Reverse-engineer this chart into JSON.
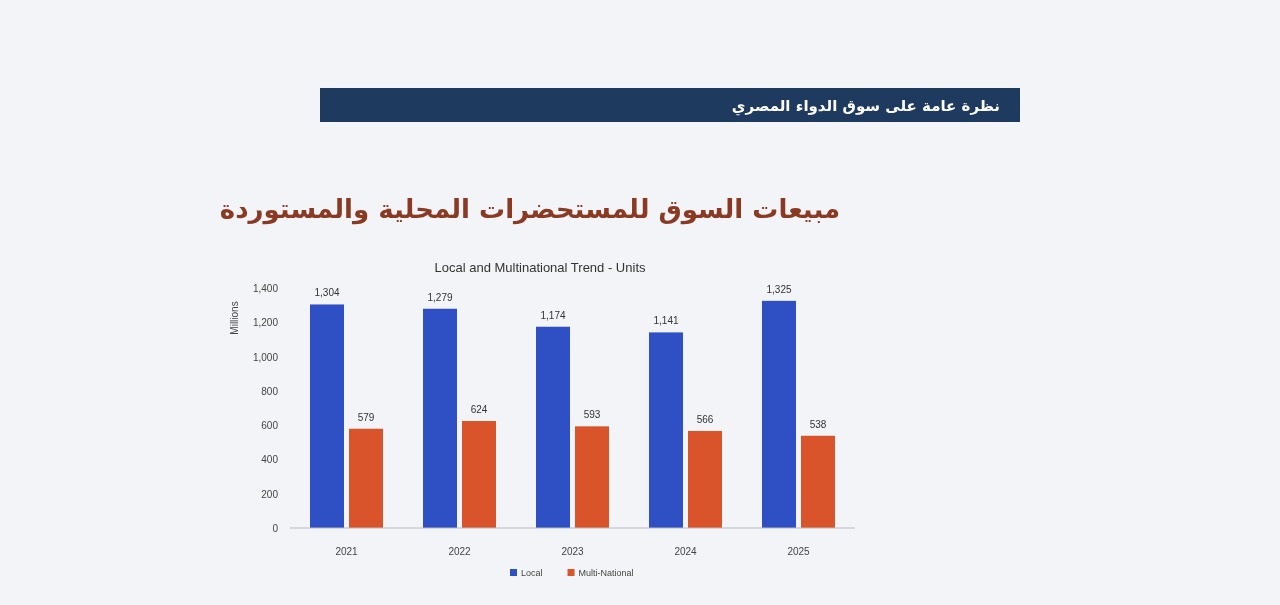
{
  "chart_data": {
    "type": "bar",
    "title": "مبيعات السوق للمستحضرات المحلية والمستوردة",
    "subtitle": "Local and Multinational Trend - Units",
    "annotations": [
      "نظرة عامة على سوق الدواء المصري"
    ],
    "ylabel": "Millions",
    "categories": [
      "2021",
      "2022",
      "2023",
      "2024",
      "2025"
    ],
    "series": [
      {
        "name": "Local",
        "color": "#2f4fc4",
        "values": [
          1304,
          1279,
          1174,
          1141,
          1325
        ],
        "value_labels": [
          "1,304",
          "1,279",
          "1,174",
          "1,141",
          "1,325"
        ]
      },
      {
        "name": "Multi-National",
        "color": "#d9542b",
        "values": [
          579,
          624,
          593,
          566,
          538
        ],
        "value_labels": [
          "579",
          "624",
          "593",
          "566",
          "538"
        ]
      }
    ],
    "ylim": [
      0,
      1400
    ],
    "yticks": [
      0,
      200,
      400,
      600,
      800,
      {
        "value": 1000,
        "label": "1,000"
      },
      {
        "value": 1200,
        "label": "1,200"
      },
      {
        "value": 1400,
        "label": "1,400"
      }
    ],
    "legend": "bottom",
    "grid": false
  }
}
